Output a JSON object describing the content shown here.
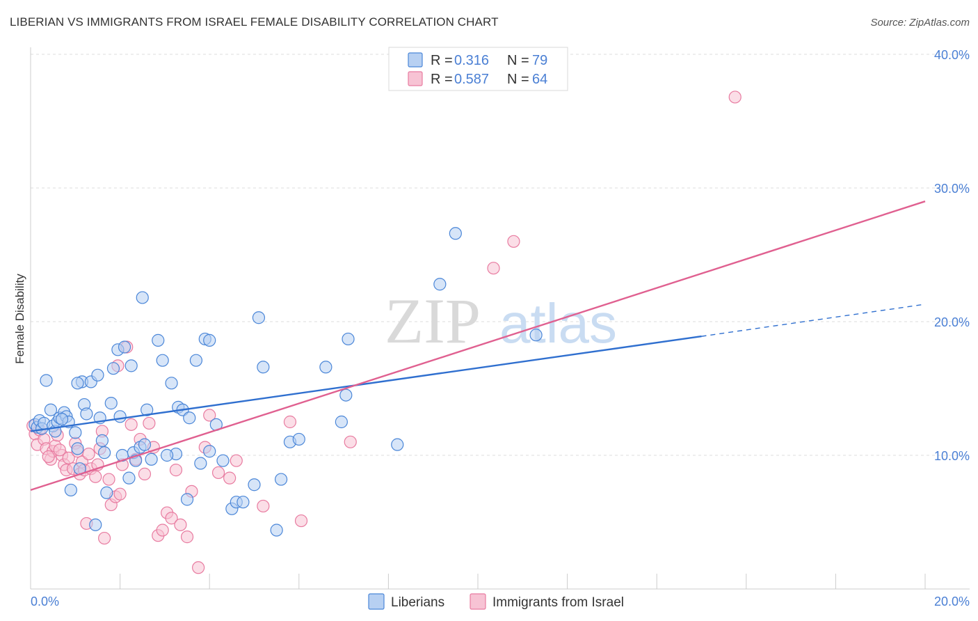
{
  "title": "LIBERIAN VS IMMIGRANTS FROM ISRAEL FEMALE DISABILITY CORRELATION CHART",
  "source": "Source: ZipAtlas.com",
  "watermark": {
    "part1": "ZIP",
    "part2": "atlas"
  },
  "colors": {
    "blue": "#4a86d8",
    "blue_fill": "#b7d0f2",
    "blue_line": "#2f6fcf",
    "pink": "#e87ba0",
    "pink_fill": "#f7c3d4",
    "pink_line": "#e06090",
    "tick": "#4a7fd4",
    "grid": "#dddddd"
  },
  "legend": {
    "rows": [
      {
        "r_label": "R =",
        "r_value": "0.316",
        "n_label": "N =",
        "n_value": "79"
      },
      {
        "r_label": "R =",
        "r_value": "0.587",
        "n_label": "N =",
        "n_value": "64"
      }
    ]
  },
  "bottom_legend": [
    "Liberians",
    "Immigrants from Israel"
  ],
  "chart_data": {
    "type": "scatter",
    "title": "LIBERIAN VS IMMIGRANTS FROM ISRAEL FEMALE DISABILITY CORRELATION CHART",
    "xlabel": "",
    "ylabel": "Female Disability",
    "xlim": [
      0,
      20
    ],
    "ylim": [
      0,
      40
    ],
    "x_tick_labels": [
      "0.0%",
      "20.0%"
    ],
    "y_ticks": [
      10,
      20,
      30,
      40
    ],
    "y_tick_labels": [
      "10.0%",
      "20.0%",
      "30.0%",
      "40.0%"
    ],
    "grid": true,
    "legend_position": "top-center",
    "series": [
      {
        "name": "Liberians",
        "r": 0.316,
        "n": 79,
        "trend": {
          "x": [
            0,
            15
          ],
          "y": [
            11.8,
            18.9
          ],
          "dashed_to": [
            20,
            21.3
          ]
        },
        "points": [
          [
            0.1,
            12.3
          ],
          [
            0.15,
            12.1
          ],
          [
            0.2,
            12.6
          ],
          [
            0.25,
            12.0
          ],
          [
            0.3,
            12.4
          ],
          [
            0.35,
            15.6
          ],
          [
            0.45,
            13.4
          ],
          [
            0.5,
            12.2
          ],
          [
            0.55,
            11.8
          ],
          [
            0.6,
            12.5
          ],
          [
            0.65,
            12.8
          ],
          [
            0.75,
            13.2
          ],
          [
            0.8,
            12.9
          ],
          [
            0.85,
            12.5
          ],
          [
            1.0,
            11.7
          ],
          [
            1.05,
            10.5
          ],
          [
            1.1,
            9.0
          ],
          [
            1.15,
            15.5
          ],
          [
            1.2,
            13.8
          ],
          [
            1.25,
            13.1
          ],
          [
            1.35,
            15.5
          ],
          [
            1.5,
            16.0
          ],
          [
            1.55,
            12.8
          ],
          [
            1.6,
            11.1
          ],
          [
            1.65,
            10.2
          ],
          [
            1.7,
            7.2
          ],
          [
            1.8,
            13.9
          ],
          [
            1.85,
            16.5
          ],
          [
            1.95,
            17.9
          ],
          [
            2.0,
            12.9
          ],
          [
            2.05,
            10.0
          ],
          [
            2.1,
            18.1
          ],
          [
            2.2,
            8.3
          ],
          [
            2.25,
            16.7
          ],
          [
            2.3,
            10.2
          ],
          [
            2.35,
            9.6
          ],
          [
            2.45,
            10.6
          ],
          [
            2.5,
            21.8
          ],
          [
            2.6,
            13.4
          ],
          [
            2.7,
            9.7
          ],
          [
            2.85,
            18.6
          ],
          [
            2.95,
            17.1
          ],
          [
            3.15,
            15.4
          ],
          [
            3.3,
            13.6
          ],
          [
            3.4,
            13.4
          ],
          [
            3.5,
            6.7
          ],
          [
            3.55,
            12.8
          ],
          [
            3.7,
            17.1
          ],
          [
            3.8,
            9.4
          ],
          [
            3.9,
            18.7
          ],
          [
            4.0,
            18.6
          ],
          [
            4.15,
            12.3
          ],
          [
            4.3,
            9.6
          ],
          [
            4.5,
            6.0
          ],
          [
            4.6,
            6.5
          ],
          [
            4.75,
            6.5
          ],
          [
            5.0,
            7.8
          ],
          [
            5.1,
            20.3
          ],
          [
            5.2,
            16.6
          ],
          [
            5.5,
            4.4
          ],
          [
            5.6,
            8.2
          ],
          [
            5.8,
            11.0
          ],
          [
            6.0,
            11.2
          ],
          [
            6.6,
            16.6
          ],
          [
            6.95,
            12.5
          ],
          [
            7.05,
            14.5
          ],
          [
            7.1,
            18.7
          ],
          [
            8.2,
            10.8
          ],
          [
            9.15,
            22.8
          ],
          [
            9.5,
            26.6
          ],
          [
            11.3,
            19.0
          ],
          [
            0.9,
            7.4
          ],
          [
            1.45,
            4.8
          ],
          [
            3.25,
            10.1
          ],
          [
            4.0,
            10.3
          ],
          [
            0.7,
            12.7
          ],
          [
            2.55,
            10.8
          ],
          [
            1.05,
            15.4
          ],
          [
            3.05,
            10.0
          ]
        ]
      },
      {
        "name": "Immigrants from Israel",
        "r": 0.587,
        "n": 64,
        "trend": {
          "x": [
            0,
            20
          ],
          "y": [
            7.4,
            29.0
          ]
        },
        "points": [
          [
            0.05,
            12.2
          ],
          [
            0.1,
            11.6
          ],
          [
            0.15,
            10.8
          ],
          [
            0.2,
            11.9
          ],
          [
            0.3,
            11.2
          ],
          [
            0.35,
            10.5
          ],
          [
            0.45,
            9.7
          ],
          [
            0.5,
            10.3
          ],
          [
            0.55,
            10.7
          ],
          [
            0.6,
            11.5
          ],
          [
            0.7,
            10.0
          ],
          [
            0.75,
            9.3
          ],
          [
            0.8,
            8.9
          ],
          [
            0.85,
            9.8
          ],
          [
            0.95,
            9.0
          ],
          [
            1.0,
            10.9
          ],
          [
            1.05,
            10.3
          ],
          [
            1.1,
            8.6
          ],
          [
            1.15,
            9.5
          ],
          [
            1.2,
            8.9
          ],
          [
            1.3,
            10.1
          ],
          [
            1.35,
            9.0
          ],
          [
            1.45,
            8.4
          ],
          [
            1.5,
            9.3
          ],
          [
            1.55,
            10.5
          ],
          [
            1.6,
            11.8
          ],
          [
            1.65,
            3.8
          ],
          [
            1.75,
            8.2
          ],
          [
            1.8,
            6.3
          ],
          [
            1.9,
            6.9
          ],
          [
            1.95,
            16.7
          ],
          [
            2.05,
            9.3
          ],
          [
            2.15,
            18.1
          ],
          [
            2.25,
            12.3
          ],
          [
            2.35,
            9.7
          ],
          [
            2.45,
            11.2
          ],
          [
            2.55,
            8.6
          ],
          [
            2.65,
            12.4
          ],
          [
            2.75,
            10.6
          ],
          [
            2.85,
            4.0
          ],
          [
            2.95,
            4.4
          ],
          [
            3.05,
            5.7
          ],
          [
            3.15,
            5.3
          ],
          [
            3.25,
            8.9
          ],
          [
            3.5,
            3.9
          ],
          [
            3.6,
            7.3
          ],
          [
            3.75,
            1.6
          ],
          [
            3.9,
            10.6
          ],
          [
            4.0,
            13.0
          ],
          [
            4.2,
            8.7
          ],
          [
            4.45,
            8.3
          ],
          [
            4.6,
            9.6
          ],
          [
            5.2,
            6.2
          ],
          [
            5.8,
            12.5
          ],
          [
            6.05,
            5.1
          ],
          [
            7.15,
            11.0
          ],
          [
            10.35,
            24.0
          ],
          [
            10.8,
            26.0
          ],
          [
            15.75,
            36.8
          ],
          [
            0.4,
            9.9
          ],
          [
            1.25,
            4.9
          ],
          [
            2.0,
            7.1
          ],
          [
            3.35,
            4.8
          ],
          [
            0.65,
            10.4
          ]
        ]
      }
    ]
  }
}
